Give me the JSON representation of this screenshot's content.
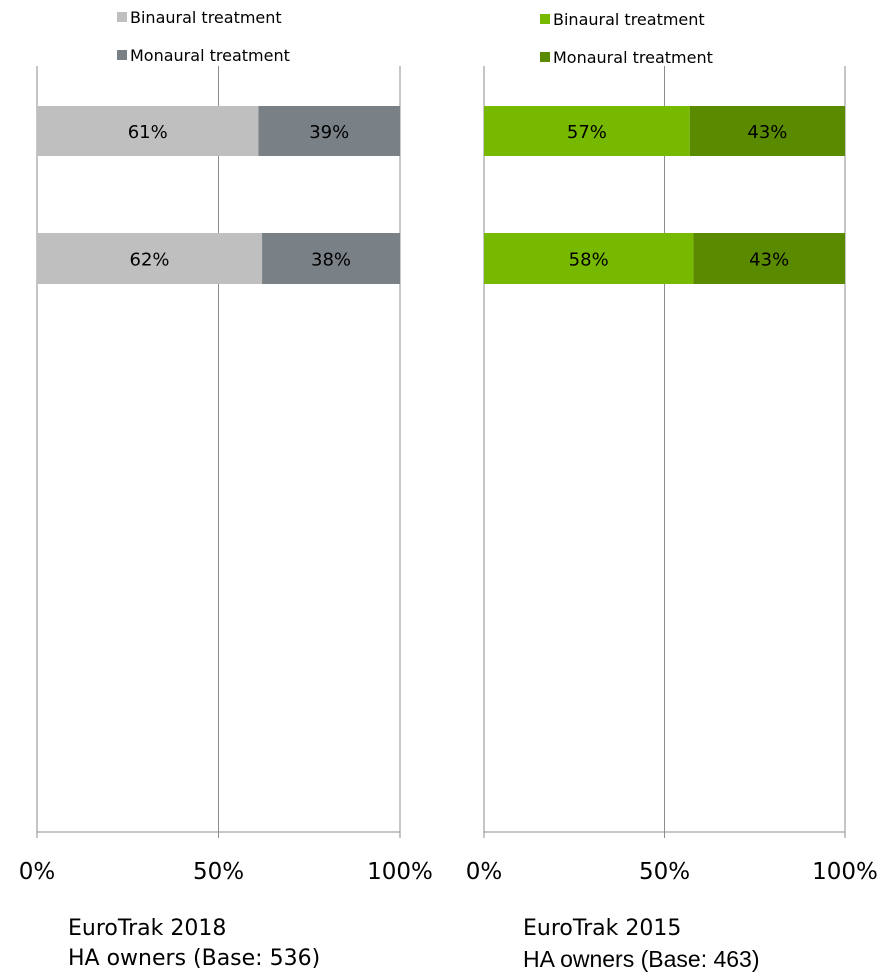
{
  "chart_data": [
    {
      "type": "bar",
      "orientation": "horizontal",
      "stacked": true,
      "categories": [
        "",
        ""
      ],
      "series": [
        {
          "name": "Binaural treatment",
          "values": [
            61,
            62
          ],
          "labels": [
            "61%",
            "62%"
          ],
          "color": "#bfbfbf"
        },
        {
          "name": "Monaural treatment",
          "values": [
            39,
            38
          ],
          "labels": [
            "39%",
            "38%"
          ],
          "color": "#7a8186"
        }
      ],
      "xlim": [
        0,
        100
      ],
      "xticks": [
        "0%",
        "50%",
        "100%"
      ],
      "grid": true,
      "legend": "top-left",
      "caption": [
        "EuroTrak 2018",
        "HA owners (Base: 536)"
      ]
    },
    {
      "type": "bar",
      "orientation": "horizontal",
      "stacked": true,
      "categories": [
        "",
        ""
      ],
      "series": [
        {
          "name": "Binaural treatment",
          "values": [
            57,
            58
          ],
          "labels": [
            "57%",
            "58%"
          ],
          "color": "#77b900"
        },
        {
          "name": "Monaural treatment",
          "values": [
            43,
            43
          ],
          "labels": [
            "43%",
            "43%"
          ],
          "color": "#5a8a00"
        }
      ],
      "xlim": [
        0,
        100
      ],
      "xticks": [
        "0%",
        "50%",
        "100%"
      ],
      "grid": true,
      "legend": "top-left",
      "caption": [
        "EuroTrak 2015",
        "HA owners (Base: 463)"
      ]
    }
  ]
}
